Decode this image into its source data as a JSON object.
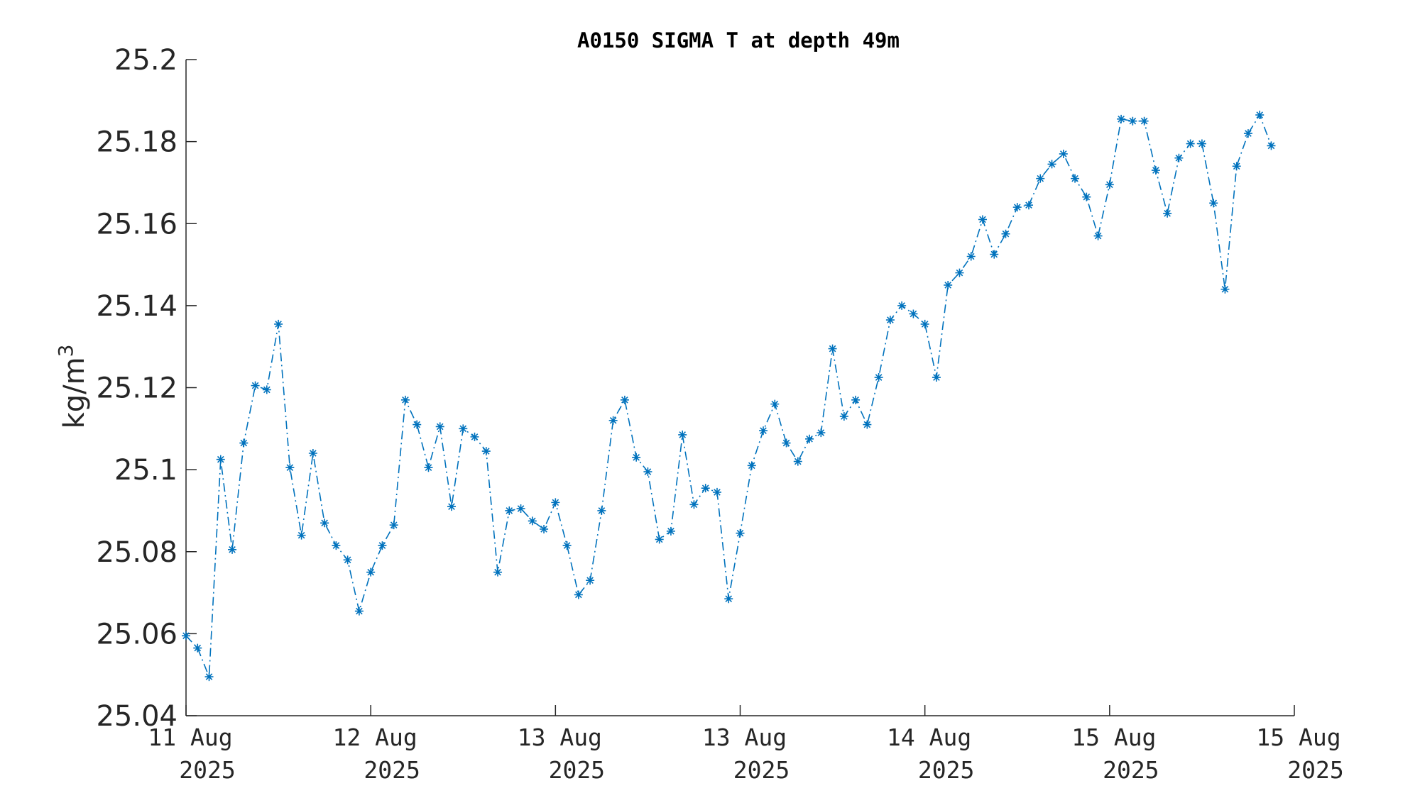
{
  "chart_data": {
    "type": "line",
    "title": "A0150 SIGMA T at depth 49m",
    "ylabel_base": "kg/m",
    "ylabel_sup": "3",
    "xlabel": "",
    "ylim": [
      25.04,
      25.2
    ],
    "yticks": [
      25.04,
      25.06,
      25.08,
      25.1,
      25.12,
      25.14,
      25.16,
      25.18,
      25.2
    ],
    "ytick_labels": [
      "25.04",
      "25.06",
      "25.08",
      "25.1",
      "25.12",
      "25.14",
      "25.16",
      "25.18",
      "25.2"
    ],
    "xlim": [
      0,
      96
    ],
    "xticks": [
      0,
      16,
      32,
      48,
      64,
      80,
      96
    ],
    "xtick_labels": [
      [
        "11 Aug",
        "2025"
      ],
      [
        "12 Aug",
        "2025"
      ],
      [
        "13 Aug",
        "2025"
      ],
      [
        "13 Aug",
        "2025"
      ],
      [
        "14 Aug",
        "2025"
      ],
      [
        "15 Aug",
        "2025"
      ],
      [
        "15 Aug",
        "2025"
      ]
    ],
    "x_unit": "hours from 11 Aug 2025 00:00",
    "grid": false,
    "series": [
      {
        "color": "#0072BD",
        "marker": "asterisk",
        "line_style": "dash-dot",
        "x_step": 1,
        "values": [
          25.0595,
          25.0565,
          25.0495,
          25.1025,
          25.0805,
          25.1065,
          25.1205,
          25.1195,
          25.1355,
          25.1005,
          25.084,
          25.104,
          25.087,
          25.0815,
          25.078,
          25.0655,
          25.075,
          25.0815,
          25.0865,
          25.117,
          25.111,
          25.1005,
          25.1105,
          25.091,
          25.11,
          25.108,
          25.1045,
          25.075,
          25.09,
          25.0905,
          25.0875,
          25.0855,
          25.092,
          25.0815,
          25.0695,
          25.073,
          25.09,
          25.112,
          25.117,
          25.103,
          25.0995,
          25.083,
          25.085,
          25.1085,
          25.0915,
          25.0955,
          25.0945,
          25.0685,
          25.0845,
          25.101,
          25.1095,
          25.116,
          25.1065,
          25.102,
          25.1075,
          25.109,
          25.1295,
          25.113,
          25.117,
          25.111,
          25.1225,
          25.1365,
          25.14,
          25.138,
          25.1355,
          25.1225,
          25.145,
          25.148,
          25.152,
          25.161,
          25.1525,
          25.1575,
          25.164,
          25.1645,
          25.171,
          25.1745,
          25.177,
          25.171,
          25.1665,
          25.157,
          25.1695,
          25.1855,
          25.185,
          25.185,
          25.173,
          25.1625,
          25.176,
          25.1795,
          25.1795,
          25.165,
          25.144,
          25.174,
          25.182,
          25.1865,
          25.179
        ]
      }
    ]
  }
}
